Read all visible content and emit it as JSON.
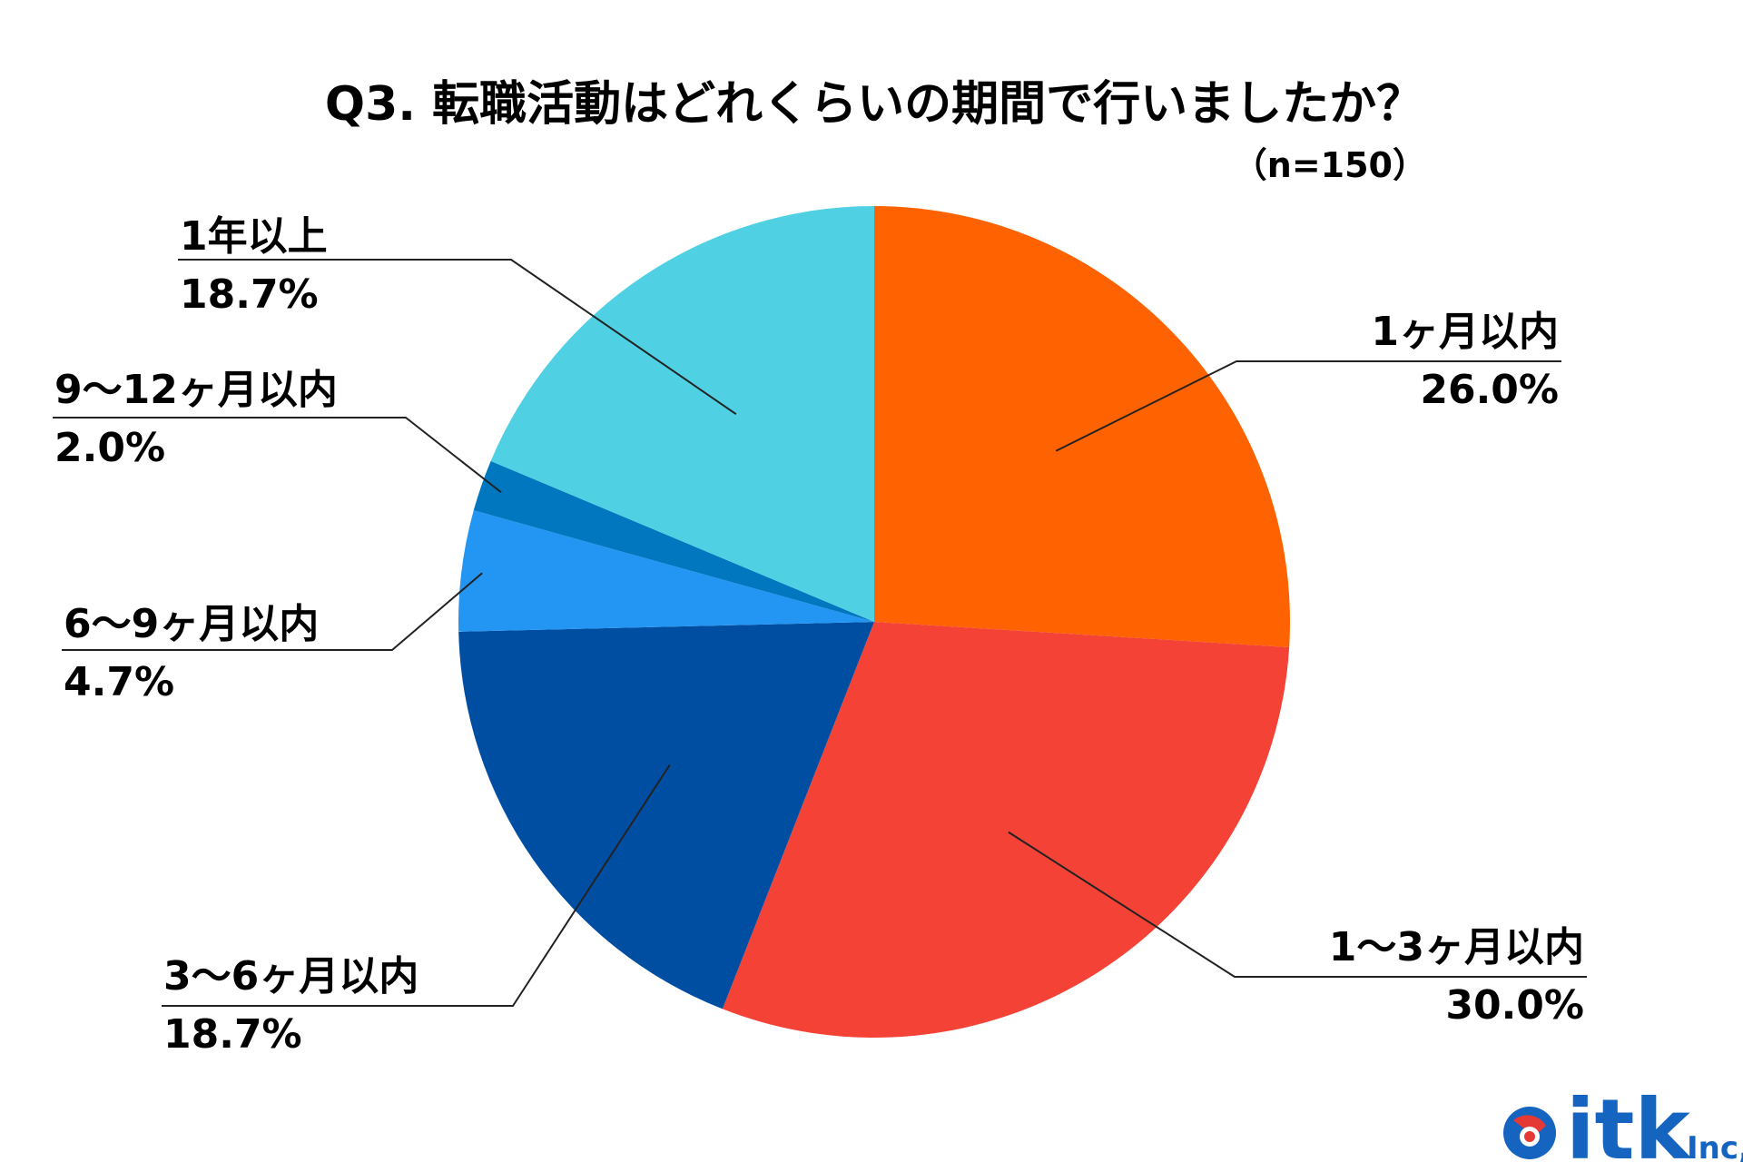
{
  "chart_data": {
    "type": "pie",
    "title": "Q3. 転職活動はどれくらいの期間で行いましたか？",
    "subtitle": "（n=150）",
    "unit": "%",
    "slices": [
      {
        "label": "1ヶ月以内",
        "value": 26.0,
        "value_label": "26.0%",
        "color": "#FF6200"
      },
      {
        "label": "1～3ヶ月以内",
        "value": 30.0,
        "value_label": "30.0%",
        "color": "#F44336"
      },
      {
        "label": "3～6ヶ月以内",
        "value": 18.7,
        "value_label": "18.7%",
        "color": "#004EA2"
      },
      {
        "label": "6～9ヶ月以内",
        "value": 4.7,
        "value_label": "4.7%",
        "color": "#2395F3"
      },
      {
        "label": "9～12ヶ月以内",
        "value": 2.0,
        "value_label": "2.0%",
        "color": "#0077BF"
      },
      {
        "label": "1年以上",
        "value": 18.7,
        "value_label": "18.7%",
        "color": "#4FD0E3"
      }
    ]
  },
  "logo": {
    "text": "itk",
    "suffix": "Inc,",
    "primary": "#1565C0",
    "accent": "#E53935"
  }
}
